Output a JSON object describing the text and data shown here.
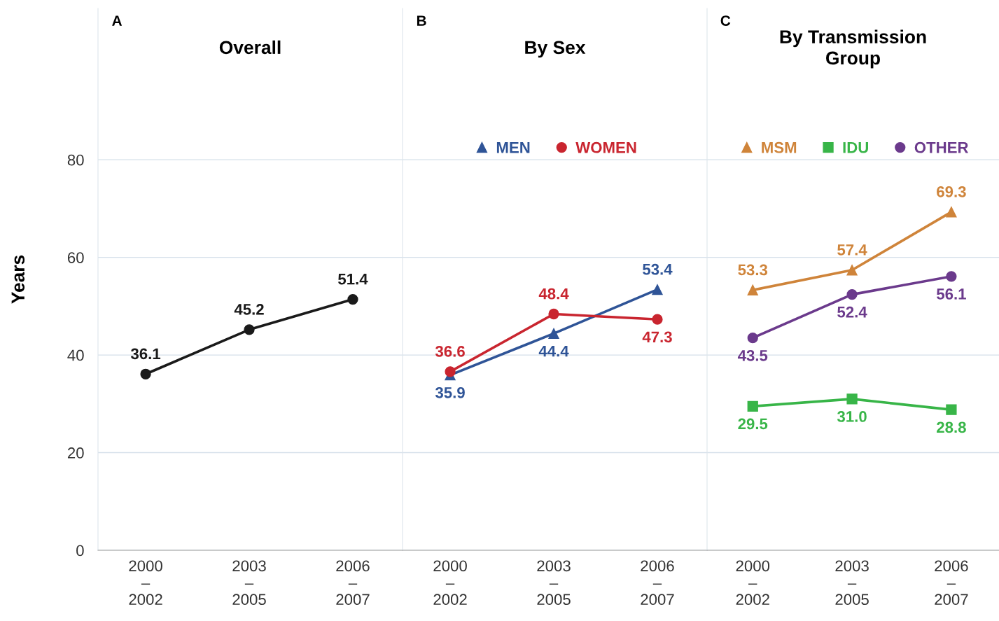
{
  "chart_data": [
    {
      "type": "line",
      "title": "Overall",
      "ylabel": "Years",
      "annotations": [
        "A"
      ],
      "categories": [
        "2000\n–\n2002",
        "2003\n–\n2005",
        "2006\n–\n2007"
      ],
      "ylim": [
        0,
        111
      ],
      "yticks": [
        0,
        20,
        40,
        60,
        80
      ],
      "grid": "y",
      "data_labels": true,
      "marker": "circle",
      "series": [
        {
          "color": "#1a1a1a",
          "values": [
            36.1,
            45.2,
            51.4
          ]
        }
      ]
    },
    {
      "type": "line",
      "title": "By Sex",
      "annotations": [
        "B"
      ],
      "categories": [
        "2000\n–\n2002",
        "2003\n–\n2005",
        "2006\n–\n2007"
      ],
      "ylim": [
        0,
        111
      ],
      "yticks": [
        0,
        20,
        40,
        60,
        80
      ],
      "grid": "y",
      "data_labels": true,
      "legend": "top",
      "tick_labels": "x",
      "series": [
        {
          "name": "MEN",
          "color": "#2f5497",
          "marker": "triangle",
          "values": [
            35.9,
            44.4,
            53.4
          ]
        },
        {
          "name": "WOMEN",
          "color": "#c9252f",
          "marker": "circle",
          "values": [
            36.6,
            48.4,
            47.3
          ]
        }
      ]
    },
    {
      "type": "line",
      "title": "By Transmission\nGroup",
      "annotations": [
        "C"
      ],
      "categories": [
        "2000\n–\n2002",
        "2003\n–\n2005",
        "2006\n–\n2007"
      ],
      "ylim": [
        0,
        111
      ],
      "yticks": [
        0,
        20,
        40,
        60,
        80
      ],
      "grid": "y",
      "data_labels": true,
      "legend": "top",
      "tick_labels": "x",
      "series": [
        {
          "name": "MSM",
          "color": "#cf843a",
          "marker": "triangle",
          "values": [
            53.3,
            57.4,
            69.3
          ]
        },
        {
          "name": "IDU",
          "color": "#38b548",
          "marker": "square",
          "values": [
            29.5,
            31.0,
            28.8
          ],
          "value_labels": [
            "29.5",
            "31.0",
            "28.8"
          ]
        },
        {
          "name": "OTHER",
          "color": "#6b3a8c",
          "marker": "circle",
          "values": [
            43.5,
            52.4,
            56.1
          ]
        }
      ]
    }
  ]
}
